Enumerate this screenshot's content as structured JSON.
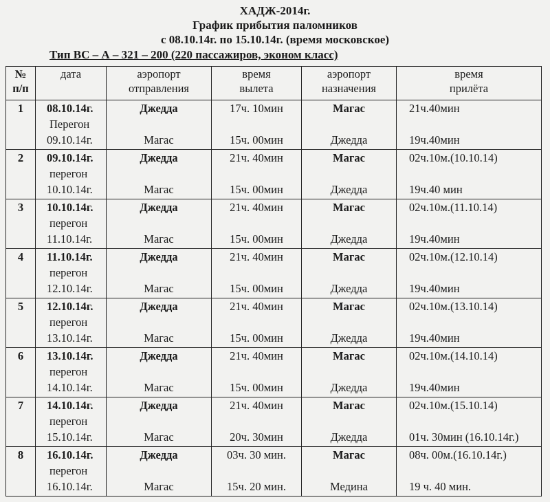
{
  "header": {
    "title": "ХАДЖ-2014г.",
    "subtitle": "График прибытия паломников",
    "period": "с 08.10.14г. по 15.10.14г. (время московское)",
    "aircraft": "Тип ВС – А – 321 – 200 (220 пассажиров, эконом класс)"
  },
  "columns": {
    "num": [
      "№",
      "п/п"
    ],
    "date": [
      "дата",
      ""
    ],
    "dep_airport": [
      "аэропорт",
      "отправления"
    ],
    "dep_time": [
      "время",
      "вылета"
    ],
    "arr_airport": [
      "аэропорт",
      "назначения"
    ],
    "arr_time": [
      "время",
      "прилёта"
    ]
  },
  "rows": [
    {
      "num": "1",
      "date": "08.10.14г.",
      "transfer": "Перегон",
      "date2": "09.10.14г.",
      "dep": "Джедда",
      "dep2": "Магас",
      "time": "17ч. 10мин",
      "time2": "15ч. 00мин",
      "arr": "Магас",
      "arr2": "Джедда",
      "atime": "21ч.40мин",
      "atime2": "19ч.40мин"
    },
    {
      "num": "2",
      "date": "09.10.14г.",
      "transfer": "перегон",
      "date2": "10.10.14г.",
      "dep": "Джедда",
      "dep2": "Магас",
      "time": "21ч. 40мин",
      "time2": "15ч. 00мин",
      "arr": "Магас",
      "arr2": "Джедда",
      "atime": "02ч.10м.(10.10.14)",
      "atime2": "19ч.40 мин"
    },
    {
      "num": "3",
      "date": "10.10.14г.",
      "transfer": "перегон",
      "date2": "11.10.14г.",
      "dep": "Джедда",
      "dep2": "Магас",
      "time": "21ч. 40мин",
      "time2": "15ч. 00мин",
      "arr": "Магас",
      "arr2": "Джедда",
      "atime": "02ч.10м.(11.10.14)",
      "atime2": "19ч.40мин"
    },
    {
      "num": "4",
      "date": "11.10.14г.",
      "transfer": "перегон",
      "date2": "12.10.14г.",
      "dep": "Джедда",
      "dep2": "Магас",
      "time": "21ч. 40мин",
      "time2": "15ч. 00мин",
      "arr": "Магас",
      "arr2": "Джедда",
      "atime": "02ч.10м.(12.10.14)",
      "atime2": "19ч.40мин"
    },
    {
      "num": "5",
      "date": "12.10.14г.",
      "transfer": "перегон",
      "date2": "13.10.14г.",
      "dep": "Джедда",
      "dep2": "Магас",
      "time": "21ч. 40мин",
      "time2": "15ч. 00мин",
      "arr": "Магас",
      "arr2": "Джедда",
      "atime": "02ч.10м.(13.10.14)",
      "atime2": "19ч.40мин"
    },
    {
      "num": "6",
      "date": "13.10.14г.",
      "transfer": "перегон",
      "date2": "14.10.14г.",
      "dep": "Джедда",
      "dep2": "Магас",
      "time": "21ч. 40мин",
      "time2": "15ч. 00мин",
      "arr": "Магас",
      "arr2": "Джедда",
      "atime": "02ч.10м.(14.10.14)",
      "atime2": "19ч.40мин"
    },
    {
      "num": "7",
      "date": "14.10.14г.",
      "transfer": "перегон",
      "date2": "15.10.14г.",
      "dep": "Джедда",
      "dep2": "Магас",
      "time": "21ч. 40мин",
      "time2": "20ч. 30мин",
      "arr": "Магас",
      "arr2": "Джедда",
      "atime": "02ч.10м.(15.10.14)",
      "atime2": "01ч. 30мин (16.10.14г.)"
    },
    {
      "num": "8",
      "date": "16.10.14г.",
      "transfer": "перегон",
      "date2": "16.10.14г.",
      "dep": "Джедда",
      "dep2": "Магас",
      "time": "03ч. 30 мин.",
      "time2": "15ч. 20 мин.",
      "arr": "Магас",
      "arr2": "Медина",
      "atime": "08ч. 00м.(16.10.14г.)",
      "atime2": "19 ч. 40 мин."
    }
  ]
}
